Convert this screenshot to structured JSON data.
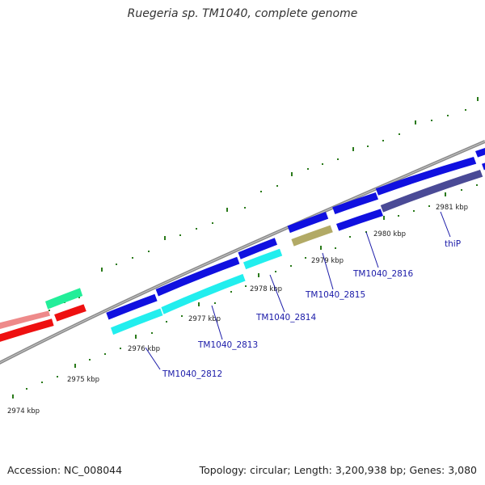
{
  "header": {
    "title": "Ruegeria sp. TM1040, complete genome"
  },
  "footer": {
    "accession": "Accession: NC_008044",
    "summary": "Topology: circular; Length: 3,200,938 bp; Genes: 3,080"
  },
  "kbp_ticks": [
    "2974 kbp",
    "2975 kbp",
    "2976 kbp",
    "2977 kbp",
    "2978 kbp",
    "2979 kbp",
    "2980 kbp",
    "2981 kbp"
  ],
  "genes": [
    {
      "label": "TM1040_2812"
    },
    {
      "label": "TM1040_2813"
    },
    {
      "label": "TM1040_2814"
    },
    {
      "label": "TM1040_2815"
    },
    {
      "label": "TM1040_2816"
    },
    {
      "label": "thiP"
    }
  ],
  "colors": {
    "backbone": "#8a8a8a",
    "tick": "#2a7a1a",
    "forward_gene": "#1010e0",
    "cds": "#22eeee",
    "olive": "#b2aa66",
    "dark_slate": "#4a4a96",
    "red": "#ee1010",
    "pink": "#ee8a8a",
    "green": "#22ee99"
  }
}
